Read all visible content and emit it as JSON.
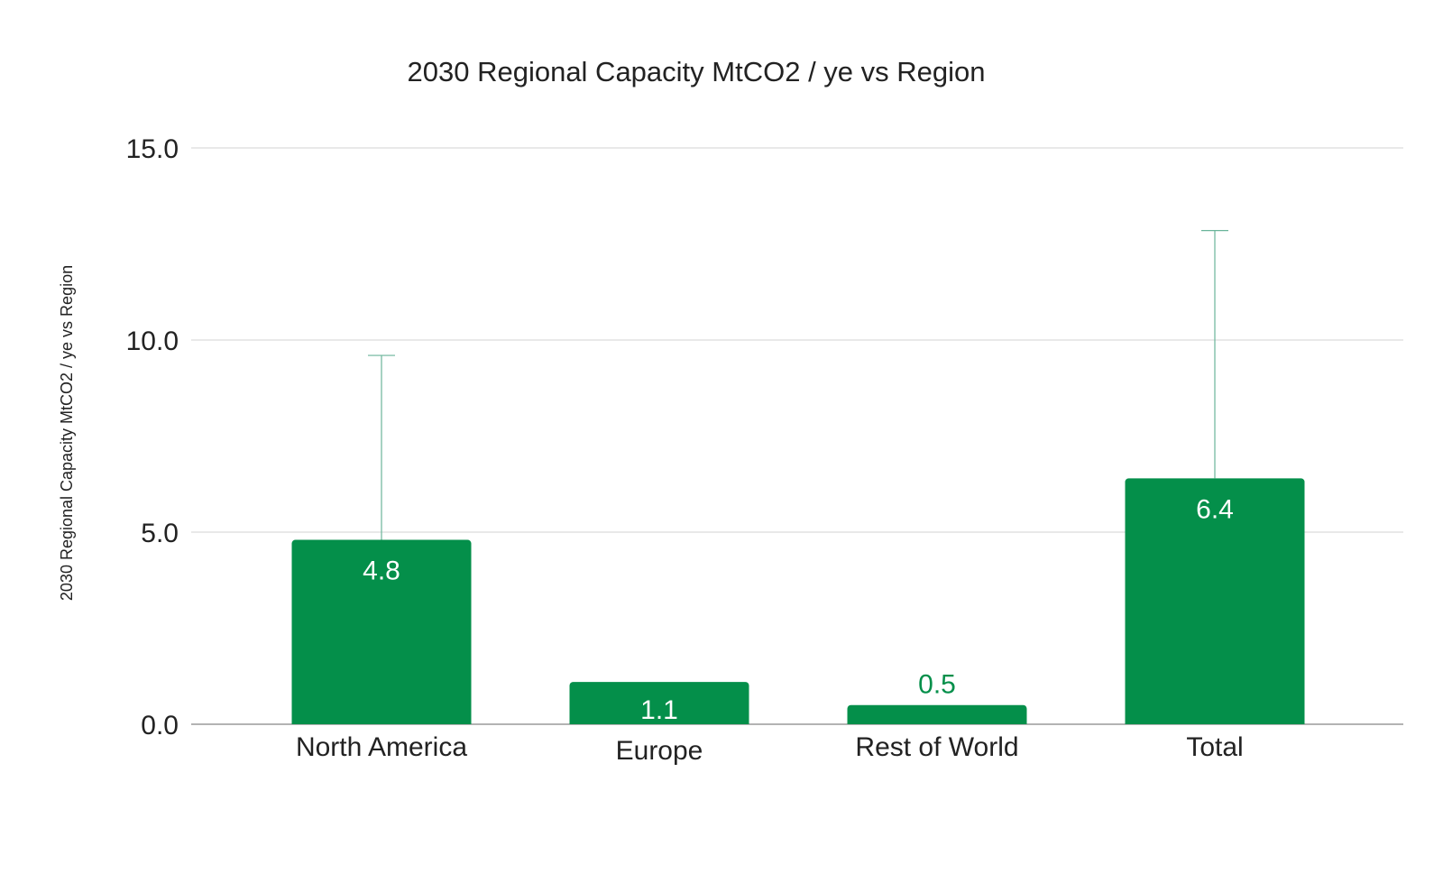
{
  "colors": {
    "bar": "#048f4a",
    "error_bar": "#6ab59a",
    "label_inside": "#ffffff",
    "label_outside": "#048f4a"
  },
  "chart_data": {
    "type": "bar",
    "title": "2030 Regional Capacity MtCO2 / ye vs Region",
    "xlabel": "",
    "ylabel": "2030 Regional Capacity MtCO2 / ye vs Region",
    "categories": [
      "North America",
      "Europe",
      "Rest of World",
      "Total"
    ],
    "values": [
      4.8,
      1.1,
      0.5,
      6.4
    ],
    "data_labels": [
      "4.8",
      "1.1",
      "0.5",
      "6.4"
    ],
    "error_upper": [
      9.6,
      null,
      null,
      12.85
    ],
    "ylim": [
      0,
      15
    ],
    "yticks": [
      0,
      5,
      10,
      15
    ],
    "ytick_labels": [
      "0.0",
      "5.0",
      "10.0",
      "15.0"
    ],
    "grid": true,
    "legend": "none"
  }
}
